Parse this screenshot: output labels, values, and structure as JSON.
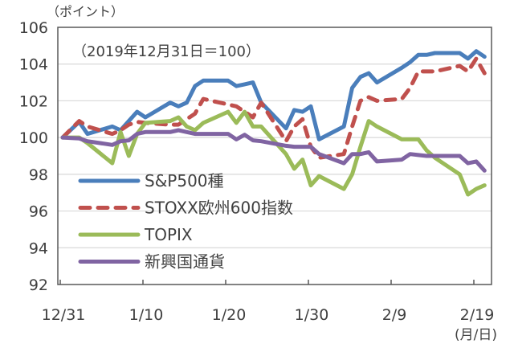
{
  "chart_data": {
    "type": "line",
    "unit_label": "（ポイント）",
    "note": "（2019年12月31日＝100）",
    "x_unit_label": "(月/日)",
    "ylim": [
      92,
      106
    ],
    "yticks": [
      "106",
      "104",
      "102",
      "100",
      "98",
      "96",
      "94",
      "92"
    ],
    "xticks": [
      "12/31",
      "1/10",
      "1/20",
      "1/30",
      "2/9",
      "2/19"
    ],
    "grid": true,
    "legend_position": "bottom-left",
    "x": [
      "12/31",
      "1/2",
      "1/3",
      "1/6",
      "1/7",
      "1/8",
      "1/9",
      "1/10",
      "1/13",
      "1/14",
      "1/15",
      "1/16",
      "1/17",
      "1/20",
      "1/21",
      "1/22",
      "1/23",
      "1/24",
      "1/27",
      "1/28",
      "1/29",
      "1/30",
      "1/31",
      "2/3",
      "2/4",
      "2/5",
      "2/6",
      "2/7",
      "2/10",
      "2/11",
      "2/12",
      "2/13",
      "2/14",
      "2/17",
      "2/18",
      "2/19",
      "2/20"
    ],
    "series": [
      {
        "name": "S&P500種",
        "color": "#4a7ebb",
        "style": "solid",
        "values": [
          100,
          100.85,
          100.2,
          100.6,
          100.4,
          100.9,
          101.4,
          101.1,
          101.9,
          101.7,
          101.9,
          102.8,
          103.1,
          103.1,
          102.8,
          102.9,
          103.0,
          101.9,
          100.5,
          101.5,
          101.4,
          101.7,
          99.9,
          100.6,
          102.7,
          103.3,
          103.5,
          103.0,
          103.8,
          104.1,
          104.5,
          104.5,
          104.6,
          104.6,
          104.3,
          104.7,
          104.4
        ]
      },
      {
        "name": "STOXX欧州600指数",
        "color": "#c0504d",
        "style": "dashed",
        "values": [
          100,
          100.9,
          100.6,
          100.2,
          100.4,
          100.7,
          100.85,
          100.8,
          100.7,
          100.7,
          101.0,
          101.3,
          102.1,
          101.8,
          101.7,
          101.4,
          101.1,
          101.9,
          99.8,
          100.6,
          101.0,
          99.5,
          98.9,
          99.1,
          100.6,
          102.0,
          102.2,
          102.0,
          102.1,
          102.7,
          103.6,
          103.6,
          103.6,
          103.9,
          103.6,
          104.3,
          103.5
        ]
      },
      {
        "name": "TOPIX",
        "color": "#9bbb59",
        "style": "solid",
        "values": [
          100,
          100,
          99.7,
          98.6,
          100.3,
          99.0,
          100.2,
          100.8,
          100.9,
          101.1,
          100.6,
          100.4,
          100.8,
          101.4,
          100.8,
          101.4,
          100.6,
          100.6,
          99.1,
          98.3,
          98.8,
          97.4,
          97.9,
          97.2,
          98.0,
          99.5,
          100.9,
          100.6,
          99.9,
          99.9,
          99.9,
          99.3,
          98.9,
          98.0,
          96.9,
          97.2,
          97.4
        ]
      },
      {
        "name": "新興国通貨",
        "color": "#8064a2",
        "style": "solid",
        "values": [
          100,
          99.95,
          99.8,
          99.6,
          99.8,
          99.85,
          100.2,
          100.3,
          100.3,
          100.4,
          100.3,
          100.2,
          100.2,
          100.2,
          99.9,
          100.15,
          99.85,
          99.8,
          99.55,
          99.5,
          99.5,
          99.5,
          99.1,
          98.6,
          99.1,
          99.1,
          99.2,
          98.7,
          98.8,
          99.1,
          99.05,
          99.0,
          99.0,
          99.0,
          98.6,
          98.7,
          98.2
        ]
      }
    ]
  }
}
